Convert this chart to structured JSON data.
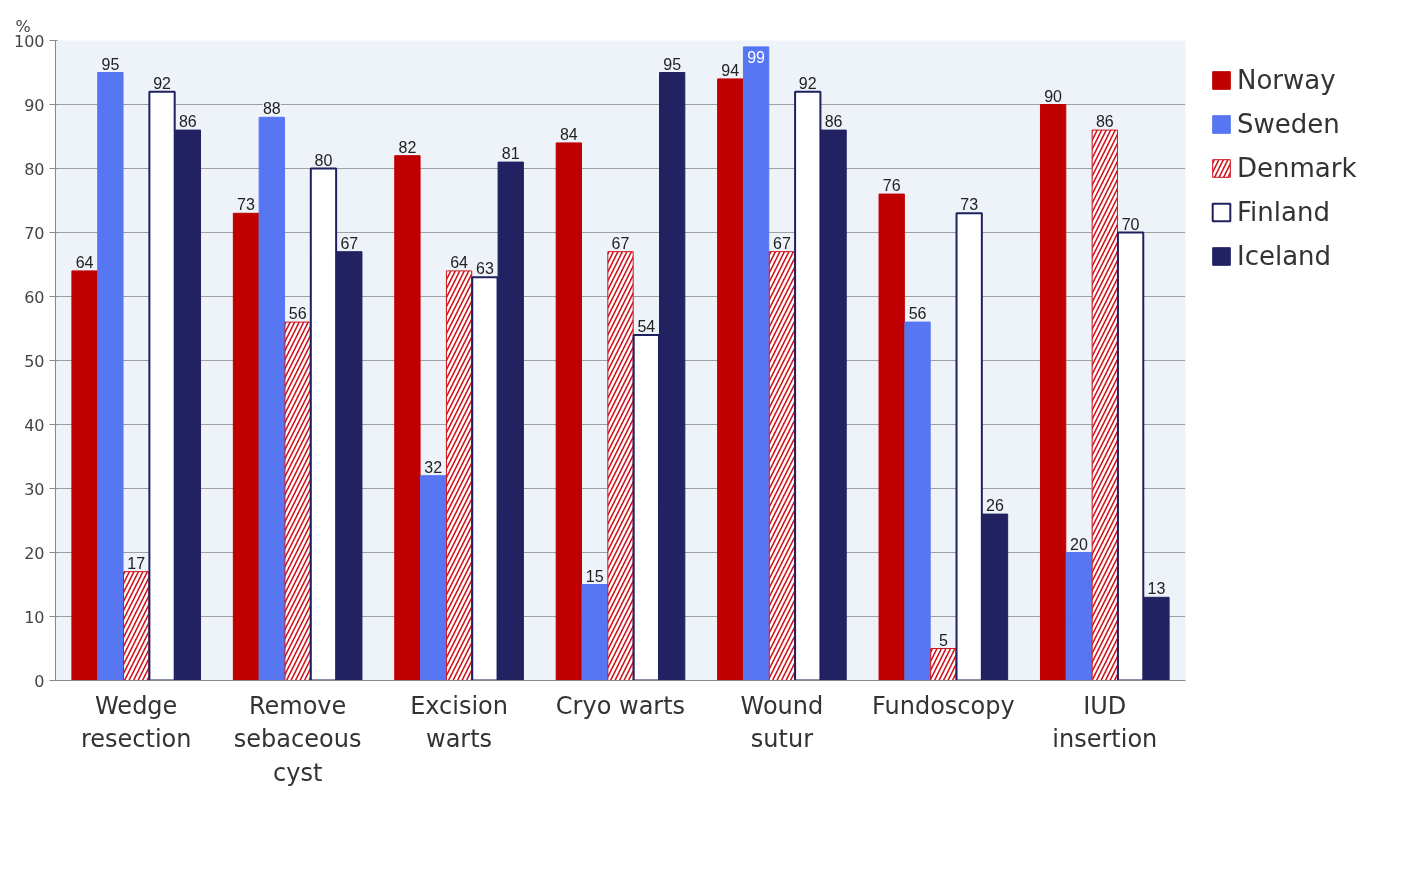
{
  "chart_data": {
    "type": "bar",
    "ylabel": "%",
    "categories": [
      "Wedge\nresection",
      "Remove\nsebaceous\ncyst",
      "Excision\nwarts",
      "Cryo warts",
      "Wound\nsutur",
      "Fundoscopy",
      "IUD\ninsertion"
    ],
    "series": [
      {
        "name": "Norway",
        "color": "#c00000",
        "values": [
          64,
          73,
          82,
          84,
          94,
          76,
          90
        ]
      },
      {
        "name": "Sweden",
        "color": "#5776f2",
        "values": [
          95,
          88,
          32,
          15,
          99,
          56,
          20
        ]
      },
      {
        "name": "Denmark",
        "color": "#d0151f",
        "values": [
          17,
          56,
          64,
          67,
          67,
          5,
          86
        ]
      },
      {
        "name": "Finland",
        "color": "#1f2060",
        "values": [
          92,
          80,
          63,
          54,
          92,
          73,
          70
        ]
      },
      {
        "name": "Iceland",
        "color": "#222262",
        "values": [
          86,
          67,
          81,
          95,
          86,
          26,
          13
        ]
      }
    ],
    "ylim": [
      0,
      100
    ],
    "yticks": [
      0,
      10,
      20,
      30,
      40,
      50,
      60,
      70,
      80,
      90,
      100
    ],
    "grid": "y",
    "legend": "right",
    "data_labels": true
  }
}
